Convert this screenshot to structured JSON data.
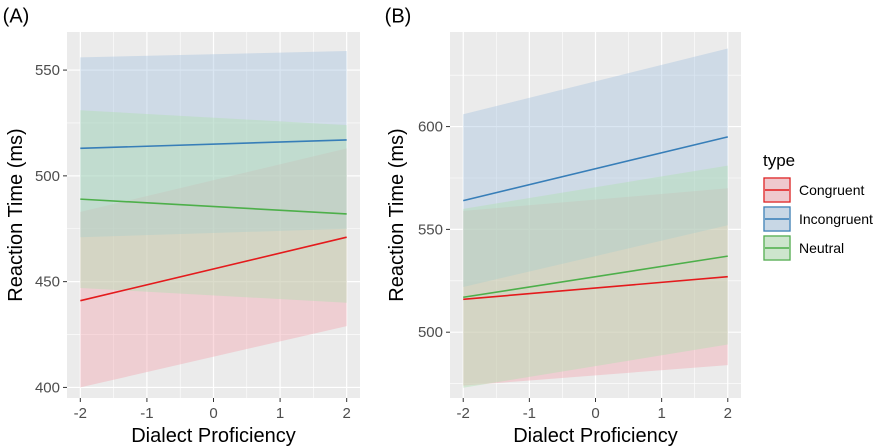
{
  "legend": {
    "title": "type",
    "entries": [
      {
        "name": "Congruent",
        "line_color": "#e41a1c",
        "fill_color": "#f4a6b0"
      },
      {
        "name": "Incongruent",
        "line_color": "#377eb8",
        "fill_color": "#a6c4e0"
      },
      {
        "name": "Neutral",
        "line_color": "#4daf4a",
        "fill_color": "#b0dfb0"
      }
    ]
  },
  "chart_data": [
    {
      "panel_label": "(A)",
      "type": "line",
      "xlabel": "Dialect Proficiency",
      "ylabel": "Reaction Time (ms)",
      "xlim": [
        -2.2,
        2.2
      ],
      "ylim": [
        395,
        568
      ],
      "xticks": [
        -2,
        -1,
        0,
        1,
        2
      ],
      "yticks": [
        400,
        450,
        500,
        550
      ],
      "grid": true,
      "series": [
        {
          "name": "Congruent",
          "x": [
            -2,
            2
          ],
          "y": [
            441,
            471
          ],
          "lower": [
            400,
            429
          ],
          "upper": [
            483,
            513
          ]
        },
        {
          "name": "Incongruent",
          "x": [
            -2,
            2
          ],
          "y": [
            513,
            517
          ],
          "lower": [
            471,
            475
          ],
          "upper": [
            556,
            559
          ]
        },
        {
          "name": "Neutral",
          "x": [
            -2,
            2
          ],
          "y": [
            489,
            482
          ],
          "lower": [
            447,
            440
          ],
          "upper": [
            531,
            524
          ]
        }
      ]
    },
    {
      "panel_label": "(B)",
      "type": "line",
      "xlabel": "Dialect Proficiency",
      "ylabel": "Reaction Time (ms)",
      "xlim": [
        -2.2,
        2.2
      ],
      "ylim": [
        468,
        646
      ],
      "xticks": [
        -2,
        -1,
        0,
        1,
        2
      ],
      "yticks": [
        500,
        550,
        600
      ],
      "grid": true,
      "series": [
        {
          "name": "Congruent",
          "x": [
            -2,
            2
          ],
          "y": [
            516,
            527
          ],
          "lower": [
            474,
            484
          ],
          "upper": [
            559,
            570
          ]
        },
        {
          "name": "Incongruent",
          "x": [
            -2,
            2
          ],
          "y": [
            564,
            595
          ],
          "lower": [
            522,
            552
          ],
          "upper": [
            606,
            638
          ]
        },
        {
          "name": "Neutral",
          "x": [
            -2,
            2
          ],
          "y": [
            517,
            537
          ],
          "lower": [
            473,
            494
          ],
          "upper": [
            560,
            581
          ]
        }
      ]
    }
  ]
}
